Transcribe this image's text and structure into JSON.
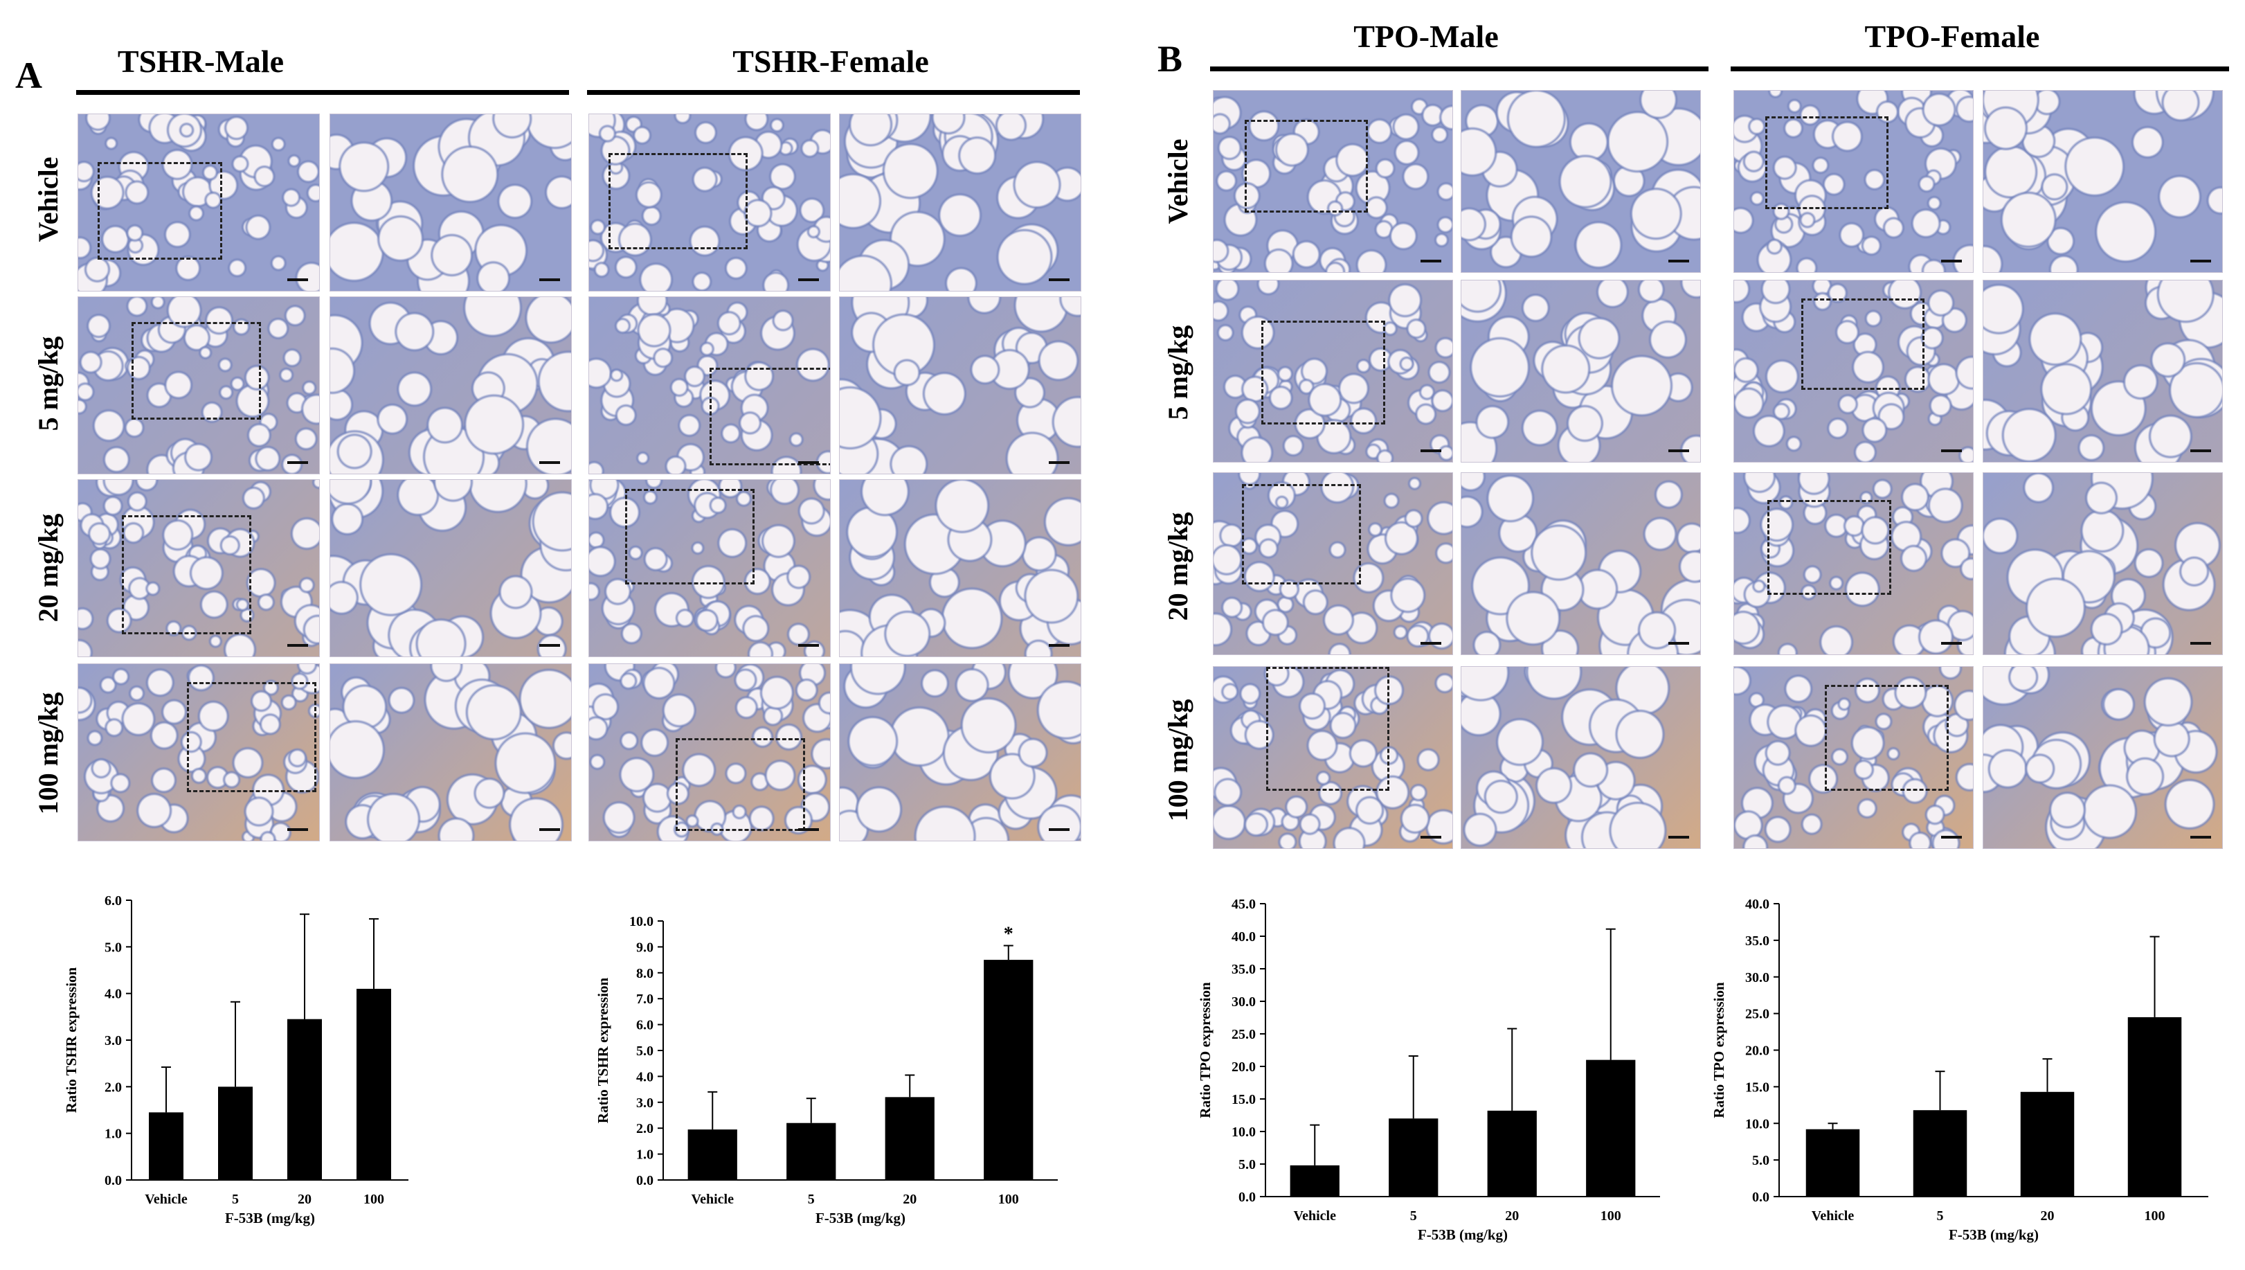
{
  "panels": [
    {
      "letter": "A",
      "columns": [
        "TSHR-Male",
        "TSHR-Female"
      ]
    },
    {
      "letter": "B",
      "columns": [
        "TPO-Male",
        "TPO-Female"
      ]
    }
  ],
  "rows": [
    "Vehicle",
    "5 mg/kg",
    "20 mg/kg",
    "100 mg/kg"
  ],
  "colors": {
    "bar": "#000000",
    "follicle": "#f4f0f4",
    "tissue_blue": "#8a9ccd",
    "stain_brown": "#c89a6c"
  },
  "chart_data": [
    {
      "type": "bar",
      "categories": [
        "Vehicle",
        "5",
        "20",
        "100"
      ],
      "values": [
        1.45,
        2.0,
        3.45,
        4.1
      ],
      "errors": [
        0.97,
        1.82,
        2.25,
        1.5
      ],
      "annotations": [
        "",
        "",
        "",
        ""
      ],
      "xlabel": "F-53B (mg/kg)",
      "ylabel": "Ratio TSHR expression",
      "ylim": [
        0,
        6
      ],
      "yticks": [
        "0.0",
        "1.0",
        "2.0",
        "3.0",
        "4.0",
        "5.0",
        "6.0"
      ]
    },
    {
      "type": "bar",
      "categories": [
        "Vehicle",
        "5",
        "20",
        "100"
      ],
      "values": [
        1.95,
        2.2,
        3.2,
        8.5
      ],
      "errors": [
        1.45,
        0.95,
        0.85,
        0.55
      ],
      "annotations": [
        "",
        "",
        "",
        "*"
      ],
      "xlabel": "F-53B (mg/kg)",
      "ylabel": "Ratio TSHR expression",
      "ylim": [
        0,
        10
      ],
      "yticks": [
        "0.0",
        "1.0",
        "2.0",
        "3.0",
        "4.0",
        "5.0",
        "6.0",
        "7.0",
        "8.0",
        "9.0",
        "10.0"
      ]
    },
    {
      "type": "bar",
      "categories": [
        "Vehicle",
        "5",
        "20",
        "100"
      ],
      "values": [
        4.8,
        12.0,
        13.2,
        21.0
      ],
      "errors": [
        6.2,
        9.6,
        12.6,
        20.1
      ],
      "annotations": [
        "",
        "",
        "",
        ""
      ],
      "xlabel": "F-53B (mg/kg)",
      "ylabel": "Ratio TPO expression",
      "ylim": [
        0,
        45
      ],
      "yticks": [
        "0.0",
        "5.0",
        "10.0",
        "15.0",
        "20.0",
        "25.0",
        "30.0",
        "35.0",
        "40.0",
        "45.0"
      ]
    },
    {
      "type": "bar",
      "categories": [
        "Vehicle",
        "5",
        "20",
        "100"
      ],
      "values": [
        9.2,
        11.8,
        14.3,
        24.5
      ],
      "errors": [
        0.8,
        5.3,
        4.5,
        11.0
      ],
      "annotations": [
        "",
        "",
        "",
        ""
      ],
      "xlabel": "F-53B (mg/kg)",
      "ylabel": "Ratio TPO expression",
      "ylim": [
        0,
        40
      ],
      "yticks": [
        "0.0",
        "5.0",
        "10.0",
        "15.0",
        "20.0",
        "25.0",
        "30.0",
        "35.0",
        "40.0"
      ]
    }
  ]
}
